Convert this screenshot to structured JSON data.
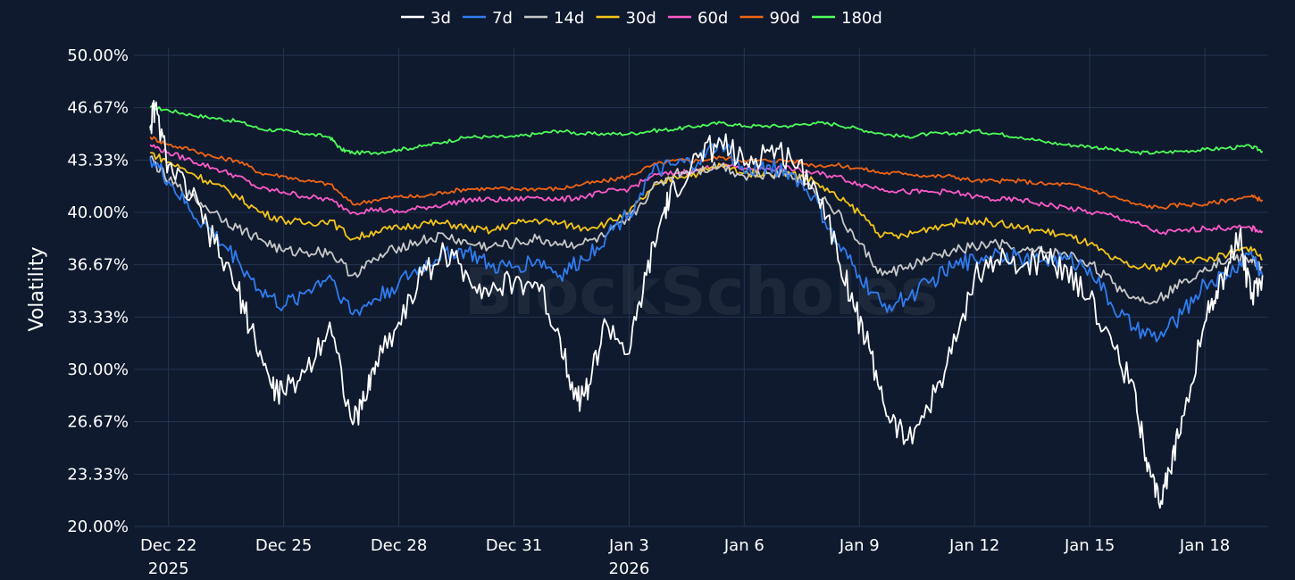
{
  "chart_data": {
    "type": "line",
    "title": "",
    "ylabel": "Volatility",
    "xlabel": "",
    "watermark": "BlockScholes",
    "ylim": [
      20.0,
      50.0
    ],
    "xlim": [
      -0.3,
      9.55
    ],
    "grid": true,
    "legend_position": "top-center",
    "y_ticks": [
      20.0,
      23.33,
      26.67,
      30.0,
      33.33,
      36.67,
      40.0,
      43.33,
      46.67,
      50.0
    ],
    "y_tick_labels": [
      "20.00%",
      "23.33%",
      "26.67%",
      "30.00%",
      "33.33%",
      "36.67%",
      "40.00%",
      "43.33%",
      "46.67%",
      "50.00%"
    ],
    "x_ticks": [
      {
        "x": 0,
        "label": "Dec 22",
        "sublabel": "2025"
      },
      {
        "x": 1,
        "label": "Dec 25",
        "sublabel": ""
      },
      {
        "x": 2,
        "label": "Dec 28",
        "sublabel": ""
      },
      {
        "x": 3,
        "label": "Dec 31",
        "sublabel": ""
      },
      {
        "x": 4,
        "label": "Jan 3",
        "sublabel": "2026"
      },
      {
        "x": 5,
        "label": "Jan 6",
        "sublabel": ""
      },
      {
        "x": 6,
        "label": "Jan 9",
        "sublabel": ""
      },
      {
        "x": 7,
        "label": "Jan 12",
        "sublabel": ""
      },
      {
        "x": 8,
        "label": "Jan 15",
        "sublabel": ""
      },
      {
        "x": 9,
        "label": "Jan 18",
        "sublabel": ""
      }
    ],
    "series": [
      {
        "name": "3d",
        "color": "#ffffff",
        "x": [
          -0.16,
          -0.12,
          0.0,
          0.2,
          0.4,
          0.6,
          0.75,
          0.9,
          1.0,
          1.2,
          1.4,
          1.6,
          1.7,
          1.8,
          2.0,
          2.2,
          2.4,
          2.6,
          2.8,
          3.0,
          3.2,
          3.4,
          3.55,
          3.65,
          3.8,
          4.0,
          4.15,
          4.3,
          4.4,
          4.6,
          4.8,
          5.0,
          5.2,
          5.4,
          5.6,
          5.8,
          5.95,
          6.1,
          6.25,
          6.4,
          6.6,
          6.8,
          7.0,
          7.2,
          7.4,
          7.6,
          7.8,
          8.0,
          8.2,
          8.4,
          8.5,
          8.6,
          8.7,
          8.8,
          9.0,
          9.1,
          9.2,
          9.3,
          9.4,
          9.5
        ],
        "y": [
          45.5,
          46.7,
          43.0,
          41.0,
          38.0,
          35.0,
          32.0,
          28.8,
          28.5,
          30.0,
          33.0,
          26.5,
          28.0,
          30.5,
          33.0,
          36.0,
          37.5,
          36.0,
          35.0,
          35.5,
          35.5,
          32.0,
          28.0,
          29.0,
          33.0,
          31.0,
          36.0,
          40.0,
          41.5,
          43.5,
          44.5,
          43.0,
          44.0,
          43.5,
          42.0,
          38.0,
          34.0,
          31.0,
          27.0,
          25.5,
          27.5,
          31.0,
          36.0,
          37.0,
          36.5,
          37.0,
          36.5,
          34.5,
          31.5,
          28.5,
          23.5,
          21.5,
          23.5,
          27.0,
          33.0,
          35.0,
          36.5,
          38.5,
          34.5,
          36.0
        ]
      },
      {
        "name": "7d",
        "color": "#2f7cf0",
        "x": [
          -0.16,
          0.0,
          0.2,
          0.4,
          0.6,
          0.8,
          1.0,
          1.2,
          1.4,
          1.6,
          1.8,
          2.0,
          2.2,
          2.4,
          2.6,
          2.8,
          3.0,
          3.2,
          3.4,
          3.6,
          3.8,
          4.0,
          4.2,
          4.4,
          4.6,
          4.8,
          5.0,
          5.2,
          5.4,
          5.6,
          5.8,
          6.0,
          6.2,
          6.4,
          6.6,
          6.8,
          7.0,
          7.2,
          7.4,
          7.6,
          7.8,
          8.0,
          8.2,
          8.4,
          8.6,
          8.8,
          9.0,
          9.2,
          9.4,
          9.5
        ],
        "y": [
          43.5,
          42.0,
          40.0,
          38.5,
          37.0,
          35.0,
          34.0,
          35.0,
          36.0,
          33.5,
          34.5,
          35.5,
          36.5,
          37.5,
          37.5,
          36.5,
          36.5,
          37.0,
          36.0,
          37.0,
          38.5,
          40.0,
          42.5,
          43.0,
          43.2,
          44.5,
          42.5,
          43.0,
          42.5,
          41.0,
          38.0,
          36.0,
          34.0,
          34.5,
          35.5,
          36.5,
          37.0,
          37.5,
          37.0,
          37.0,
          37.0,
          36.5,
          34.0,
          32.5,
          32.0,
          33.5,
          35.5,
          36.0,
          37.5,
          36.0
        ]
      },
      {
        "name": "14d",
        "color": "#c8c8c8",
        "x": [
          -0.16,
          0.0,
          0.2,
          0.4,
          0.6,
          0.8,
          1.0,
          1.2,
          1.4,
          1.6,
          1.8,
          2.0,
          2.2,
          2.4,
          2.6,
          2.8,
          3.0,
          3.2,
          3.4,
          3.6,
          3.8,
          4.0,
          4.2,
          4.4,
          4.6,
          4.8,
          5.0,
          5.2,
          5.4,
          5.6,
          5.8,
          6.0,
          6.2,
          6.4,
          6.6,
          6.8,
          7.0,
          7.2,
          7.4,
          7.6,
          7.8,
          8.0,
          8.2,
          8.4,
          8.6,
          8.8,
          9.0,
          9.2,
          9.4,
          9.5
        ],
        "y": [
          43.5,
          42.0,
          41.0,
          40.0,
          39.0,
          38.3,
          37.5,
          37.5,
          37.5,
          36.0,
          37.0,
          37.8,
          38.2,
          38.5,
          38.0,
          37.8,
          38.0,
          38.3,
          38.0,
          38.0,
          38.5,
          39.5,
          41.5,
          42.5,
          42.7,
          43.0,
          42.3,
          42.5,
          42.5,
          41.5,
          40.0,
          38.0,
          36.0,
          36.5,
          37.0,
          37.5,
          37.8,
          38.0,
          37.5,
          37.5,
          37.3,
          36.8,
          35.5,
          34.5,
          34.5,
          35.5,
          36.5,
          37.0,
          37.0,
          36.5
        ]
      },
      {
        "name": "30d",
        "color": "#f5c518",
        "x": [
          -0.16,
          0.0,
          0.2,
          0.4,
          0.6,
          0.8,
          1.0,
          1.2,
          1.4,
          1.6,
          1.8,
          2.0,
          2.2,
          2.4,
          2.6,
          2.8,
          3.0,
          3.2,
          3.4,
          3.6,
          3.8,
          4.0,
          4.2,
          4.4,
          4.6,
          4.8,
          5.0,
          5.2,
          5.4,
          5.6,
          5.8,
          6.0,
          6.2,
          6.4,
          6.6,
          6.8,
          7.0,
          7.2,
          7.4,
          7.6,
          7.8,
          8.0,
          8.2,
          8.4,
          8.6,
          8.8,
          9.0,
          9.2,
          9.4,
          9.5
        ],
        "y": [
          43.8,
          43.2,
          42.5,
          41.8,
          41.0,
          40.0,
          39.5,
          39.3,
          39.5,
          38.3,
          38.8,
          39.0,
          39.3,
          39.3,
          39.0,
          38.8,
          39.3,
          39.5,
          39.3,
          39.0,
          39.3,
          40.0,
          41.5,
          42.3,
          42.5,
          43.0,
          42.5,
          42.5,
          42.5,
          42.0,
          41.0,
          40.0,
          38.5,
          38.5,
          39.0,
          39.3,
          39.5,
          39.3,
          39.0,
          38.8,
          38.5,
          38.0,
          37.0,
          36.5,
          36.5,
          37.0,
          37.0,
          37.3,
          37.8,
          37.0
        ]
      },
      {
        "name": "60d",
        "color": "#ff5ac8",
        "x": [
          -0.16,
          0.0,
          0.2,
          0.4,
          0.6,
          0.8,
          1.0,
          1.2,
          1.4,
          1.6,
          1.8,
          2.0,
          2.2,
          2.4,
          2.6,
          2.8,
          3.0,
          3.2,
          3.4,
          3.6,
          3.8,
          4.0,
          4.2,
          4.4,
          4.6,
          4.8,
          5.0,
          5.2,
          5.4,
          5.6,
          5.8,
          6.0,
          6.2,
          6.4,
          6.6,
          6.8,
          7.0,
          7.2,
          7.4,
          7.6,
          7.8,
          8.0,
          8.2,
          8.4,
          8.6,
          8.8,
          9.0,
          9.2,
          9.4,
          9.5
        ],
        "y": [
          44.3,
          43.8,
          43.3,
          42.8,
          42.3,
          41.5,
          41.3,
          41.0,
          40.8,
          40.0,
          40.2,
          40.0,
          40.3,
          40.5,
          40.8,
          40.8,
          40.8,
          41.0,
          40.8,
          41.0,
          41.3,
          41.5,
          42.3,
          42.5,
          42.7,
          43.0,
          42.8,
          42.8,
          42.8,
          42.5,
          42.3,
          41.8,
          41.5,
          41.3,
          41.3,
          41.3,
          41.0,
          40.8,
          40.8,
          40.5,
          40.3,
          40.0,
          39.8,
          39.3,
          38.7,
          38.8,
          39.0,
          39.0,
          39.0,
          38.8
        ]
      },
      {
        "name": "90d",
        "color": "#f06414",
        "x": [
          -0.16,
          0.0,
          0.2,
          0.4,
          0.6,
          0.8,
          1.0,
          1.2,
          1.4,
          1.6,
          1.8,
          2.0,
          2.2,
          2.4,
          2.6,
          2.8,
          3.0,
          3.2,
          3.4,
          3.6,
          3.8,
          4.0,
          4.2,
          4.4,
          4.6,
          4.8,
          5.0,
          5.2,
          5.4,
          5.6,
          5.8,
          6.0,
          6.2,
          6.4,
          6.6,
          6.8,
          7.0,
          7.2,
          7.4,
          7.6,
          7.8,
          8.0,
          8.2,
          8.4,
          8.6,
          8.8,
          9.0,
          9.2,
          9.4,
          9.5
        ],
        "y": [
          44.8,
          44.3,
          44.0,
          43.5,
          43.3,
          42.5,
          42.3,
          42.0,
          41.8,
          40.5,
          40.8,
          41.0,
          41.0,
          41.3,
          41.5,
          41.5,
          41.5,
          41.5,
          41.5,
          41.8,
          42.0,
          42.3,
          43.0,
          43.3,
          43.3,
          43.5,
          43.3,
          43.3,
          43.3,
          43.0,
          43.0,
          42.8,
          42.5,
          42.5,
          42.3,
          42.3,
          42.0,
          42.0,
          42.0,
          41.8,
          41.8,
          41.5,
          41.0,
          40.5,
          40.3,
          40.5,
          40.5,
          40.8,
          41.0,
          40.8
        ]
      },
      {
        "name": "180d",
        "color": "#4cff5a",
        "x": [
          -0.16,
          0.0,
          0.2,
          0.4,
          0.6,
          0.8,
          1.0,
          1.2,
          1.4,
          1.5,
          1.6,
          1.8,
          2.0,
          2.2,
          2.4,
          2.6,
          2.8,
          3.0,
          3.2,
          3.4,
          3.6,
          3.8,
          4.0,
          4.2,
          4.4,
          4.6,
          4.8,
          5.0,
          5.2,
          5.4,
          5.6,
          5.8,
          6.0,
          6.2,
          6.4,
          6.6,
          6.8,
          7.0,
          7.2,
          7.4,
          7.6,
          7.8,
          8.0,
          8.2,
          8.4,
          8.6,
          8.8,
          9.0,
          9.2,
          9.4,
          9.5
        ],
        "y": [
          46.7,
          46.5,
          46.2,
          46.0,
          45.8,
          45.3,
          45.2,
          45.0,
          44.8,
          44.0,
          43.8,
          43.8,
          44.0,
          44.2,
          44.5,
          44.8,
          44.8,
          44.8,
          45.0,
          45.2,
          45.0,
          45.0,
          45.0,
          45.2,
          45.3,
          45.5,
          45.7,
          45.5,
          45.5,
          45.5,
          45.7,
          45.6,
          45.3,
          45.0,
          44.8,
          45.0,
          45.0,
          45.2,
          45.0,
          44.8,
          44.5,
          44.3,
          44.2,
          44.0,
          43.8,
          43.8,
          43.9,
          44.0,
          44.1,
          44.2,
          43.9
        ]
      }
    ]
  }
}
